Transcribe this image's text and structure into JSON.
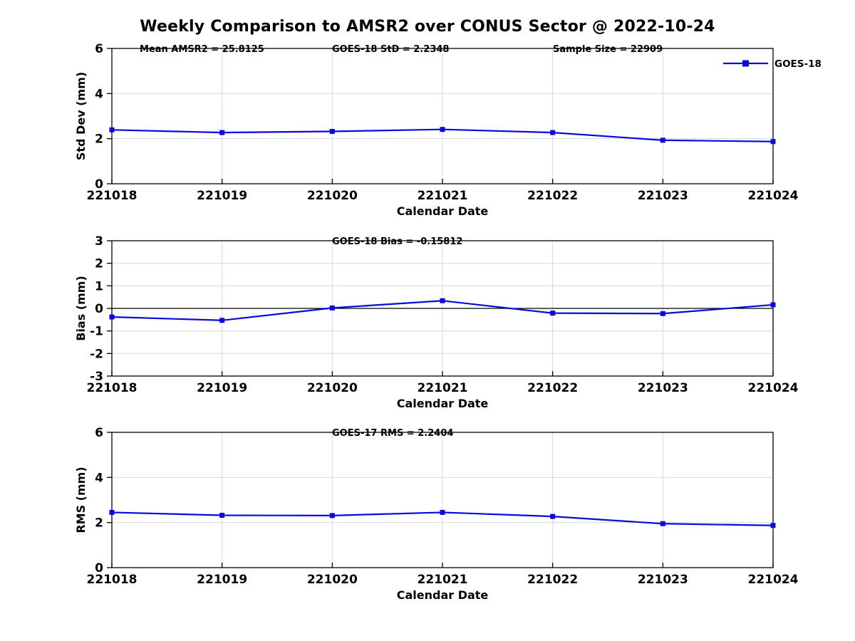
{
  "title": "Weekly Comparison to AMSR2 over CONUS Sector @ 2022-10-24",
  "legend": {
    "label": "GOES-18"
  },
  "colors": {
    "line": "#0909dd",
    "marker": "#0909dd",
    "grid": "#d8d8d8",
    "axis": "#000000",
    "zero_line": "#000000",
    "text": "#000000"
  },
  "chart_data": [
    {
      "type": "line",
      "name": "stddev",
      "ylabel": "Std Dev (mm)",
      "xlabel": "Calendar Date",
      "categories": [
        "221018",
        "221019",
        "221020",
        "221021",
        "221022",
        "221023",
        "221024"
      ],
      "ylim": [
        0,
        6
      ],
      "yticks": [
        0,
        2,
        4,
        6
      ],
      "grid": true,
      "zero_line": false,
      "legend": true,
      "legend_position": "top-right-outside",
      "annotations": [
        {
          "text": "Mean AMSR2 = 25.8125",
          "fx": 0.042
        },
        {
          "text": "GOES-18 StD = 2.2348",
          "fx": 0.333
        },
        {
          "text": "Sample Size = 22909",
          "fx": 0.667
        }
      ],
      "series": [
        {
          "name": "GOES-18",
          "values": [
            2.39,
            2.27,
            2.32,
            2.41,
            2.27,
            1.93,
            1.87
          ]
        }
      ]
    },
    {
      "type": "line",
      "name": "bias",
      "ylabel": "Bias (mm)",
      "xlabel": "Calendar Date",
      "categories": [
        "221018",
        "221019",
        "221020",
        "221021",
        "221022",
        "221023",
        "221024"
      ],
      "ylim": [
        -3,
        3
      ],
      "yticks": [
        -3,
        -2,
        -1,
        0,
        1,
        2,
        3
      ],
      "grid": true,
      "zero_line": true,
      "legend": false,
      "annotations": [
        {
          "text": "GOES-18 Bias  = -0.15812",
          "fx": 0.333
        }
      ],
      "series": [
        {
          "name": "GOES-18",
          "values": [
            -0.38,
            -0.53,
            0.02,
            0.34,
            -0.21,
            -0.23,
            0.16
          ]
        }
      ]
    },
    {
      "type": "line",
      "name": "rms",
      "ylabel": "RMS (mm)",
      "xlabel": "Calendar Date",
      "categories": [
        "221018",
        "221019",
        "221020",
        "221021",
        "221022",
        "221023",
        "221024"
      ],
      "ylim": [
        0,
        6
      ],
      "yticks": [
        0,
        2,
        4,
        6
      ],
      "grid": true,
      "zero_line": false,
      "legend": false,
      "annotations": [
        {
          "text": "GOES-17 RMS = 2.2404",
          "fx": 0.333
        }
      ],
      "series": [
        {
          "name": "GOES-18",
          "values": [
            2.45,
            2.32,
            2.31,
            2.45,
            2.27,
            1.95,
            1.87
          ]
        }
      ]
    }
  ]
}
